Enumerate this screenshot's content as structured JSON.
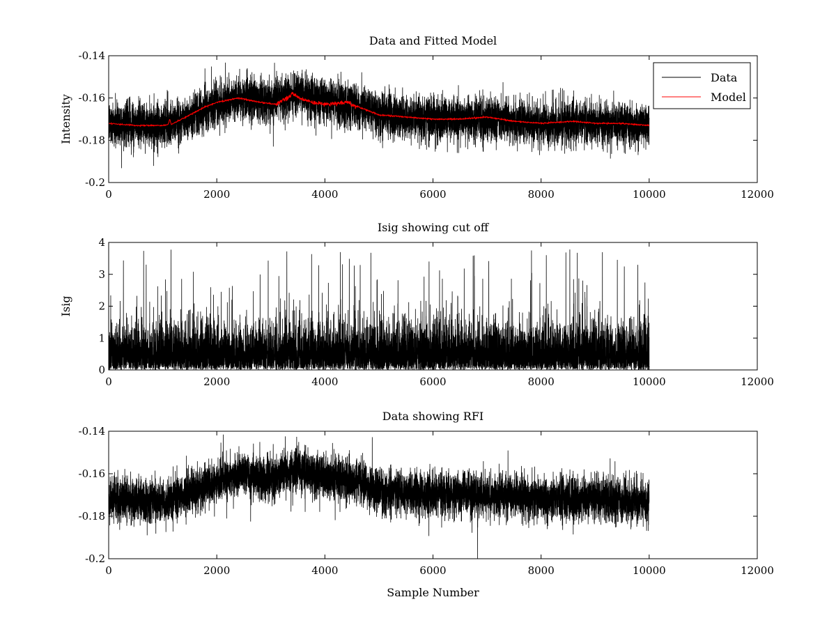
{
  "chart_data": [
    {
      "type": "line",
      "title": "Data and Fitted Model",
      "xlabel": "",
      "ylabel": "Intensity",
      "xlim": [
        0,
        12000
      ],
      "ylim": [
        -0.2,
        -0.14
      ],
      "xticks": [
        0,
        2000,
        4000,
        6000,
        8000,
        10000,
        12000
      ],
      "yticks": [
        -0.2,
        -0.18,
        -0.16,
        -0.14
      ],
      "xtick_labels": [
        "0",
        "2000",
        "4000",
        "6000",
        "8000",
        "10000",
        "12000"
      ],
      "ytick_labels": [
        "-0.2",
        "-0.18",
        "-0.16",
        "-0.14"
      ],
      "legend": {
        "position": "top-right",
        "entries": [
          "Data",
          "Model"
        ]
      },
      "series": [
        {
          "name": "Data",
          "color": "#000000",
          "kind": "noisy",
          "x_range": [
            0,
            10000
          ],
          "samples": 10000,
          "noise_amplitude": 0.005,
          "centerline_x": [
            0,
            1000,
            1500,
            2000,
            2500,
            3000,
            3500,
            4000,
            4500,
            5000,
            5500,
            6000,
            7000,
            8000,
            9000,
            10000
          ],
          "centerline_y": [
            -0.172,
            -0.173,
            -0.169,
            -0.163,
            -0.16,
            -0.162,
            -0.158,
            -0.162,
            -0.163,
            -0.168,
            -0.169,
            -0.17,
            -0.17,
            -0.172,
            -0.172,
            -0.173
          ]
        },
        {
          "name": "Model",
          "color": "#ff0000",
          "kind": "smooth",
          "x": [
            0,
            500,
            1000,
            1100,
            1130,
            1160,
            1200,
            1500,
            1800,
            2000,
            2400,
            2800,
            3100,
            3300,
            3400,
            3600,
            3800,
            4000,
            4400,
            4700,
            5000,
            5500,
            6000,
            6500,
            7000,
            7500,
            8000,
            8600,
            9000,
            9500,
            10000
          ],
          "y": [
            -0.172,
            -0.173,
            -0.173,
            -0.1725,
            -0.17,
            -0.1725,
            -0.172,
            -0.168,
            -0.164,
            -0.162,
            -0.16,
            -0.162,
            -0.163,
            -0.16,
            -0.158,
            -0.161,
            -0.162,
            -0.163,
            -0.162,
            -0.165,
            -0.168,
            -0.169,
            -0.17,
            -0.17,
            -0.169,
            -0.171,
            -0.172,
            -0.171,
            -0.172,
            -0.172,
            -0.173
          ]
        }
      ]
    },
    {
      "type": "line",
      "title": "Isig showing cut off",
      "xlabel": "",
      "ylabel": "Isig",
      "xlim": [
        0,
        12000
      ],
      "ylim": [
        0,
        4
      ],
      "xticks": [
        0,
        2000,
        4000,
        6000,
        8000,
        10000,
        12000
      ],
      "yticks": [
        0,
        1,
        2,
        3,
        4
      ],
      "xtick_labels": [
        "0",
        "2000",
        "4000",
        "6000",
        "8000",
        "10000",
        "12000"
      ],
      "ytick_labels": [
        "0",
        "1",
        "2",
        "3",
        "4"
      ],
      "series": [
        {
          "name": "Isig",
          "color": "#000000",
          "kind": "positive-noise",
          "x_range": [
            0,
            10000
          ],
          "samples": 10000,
          "typical_max": 1.6,
          "peak_max": 3.8
        }
      ]
    },
    {
      "type": "line",
      "title": "Data showing RFI",
      "xlabel": "Sample Number",
      "ylabel": "",
      "xlim": [
        0,
        12000
      ],
      "ylim": [
        -0.2,
        -0.14
      ],
      "xticks": [
        0,
        2000,
        4000,
        6000,
        8000,
        10000,
        12000
      ],
      "yticks": [
        -0.2,
        -0.18,
        -0.16,
        -0.14
      ],
      "xtick_labels": [
        "0",
        "2000",
        "4000",
        "6000",
        "8000",
        "10000",
        "12000"
      ],
      "ytick_labels": [
        "-0.2",
        "-0.18",
        "-0.16",
        "-0.14"
      ],
      "series": [
        {
          "name": "Data",
          "color": "#000000",
          "kind": "noisy",
          "x_range": [
            0,
            10000
          ],
          "samples": 10000,
          "noise_amplitude": 0.005,
          "centerline_x": [
            0,
            1000,
            1500,
            2000,
            2500,
            3000,
            3500,
            4000,
            4500,
            5000,
            5500,
            6000,
            7000,
            8000,
            9000,
            10000
          ],
          "centerline_y": [
            -0.172,
            -0.173,
            -0.169,
            -0.163,
            -0.16,
            -0.162,
            -0.158,
            -0.162,
            -0.163,
            -0.168,
            -0.169,
            -0.17,
            -0.17,
            -0.172,
            -0.172,
            -0.173
          ]
        }
      ]
    }
  ]
}
